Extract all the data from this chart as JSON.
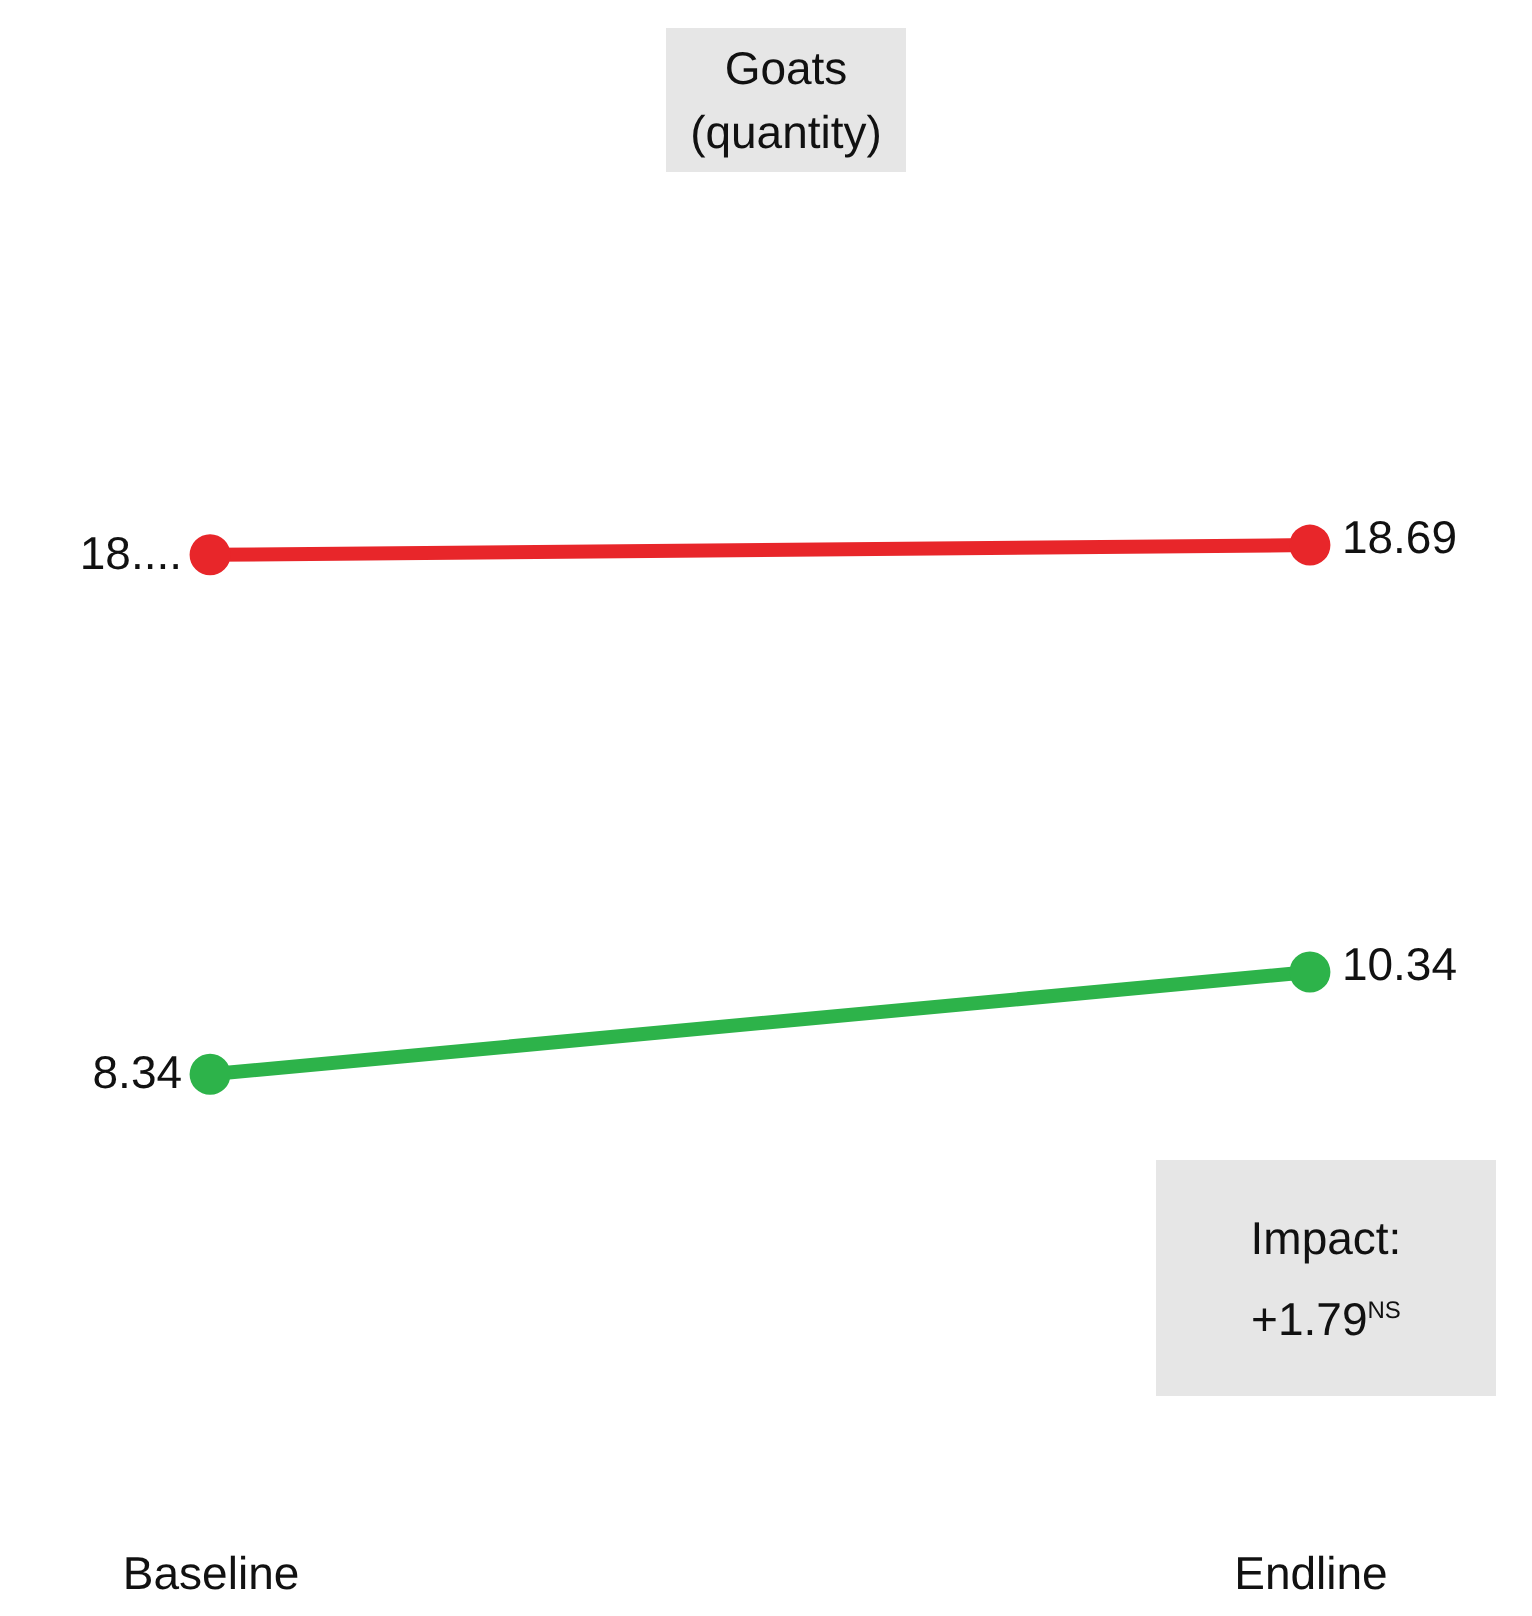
{
  "chart_data": {
    "type": "line",
    "title": "Goats\n(quantity)",
    "categories": [
      "Baseline",
      "Endline"
    ],
    "series": [
      {
        "color": "#e8262a",
        "values": [
          18.5,
          18.69
        ],
        "value_labels": [
          "18....",
          "18.69"
        ]
      },
      {
        "color": "#2db34a",
        "values": [
          8.34,
          10.34
        ],
        "value_labels": [
          "8.34",
          "10.34"
        ]
      }
    ],
    "marker": "circle",
    "legend": false,
    "grid": false,
    "tick_labels": "x",
    "annotations": [
      "Impact:\n+1.79$^{NS}$"
    ]
  }
}
